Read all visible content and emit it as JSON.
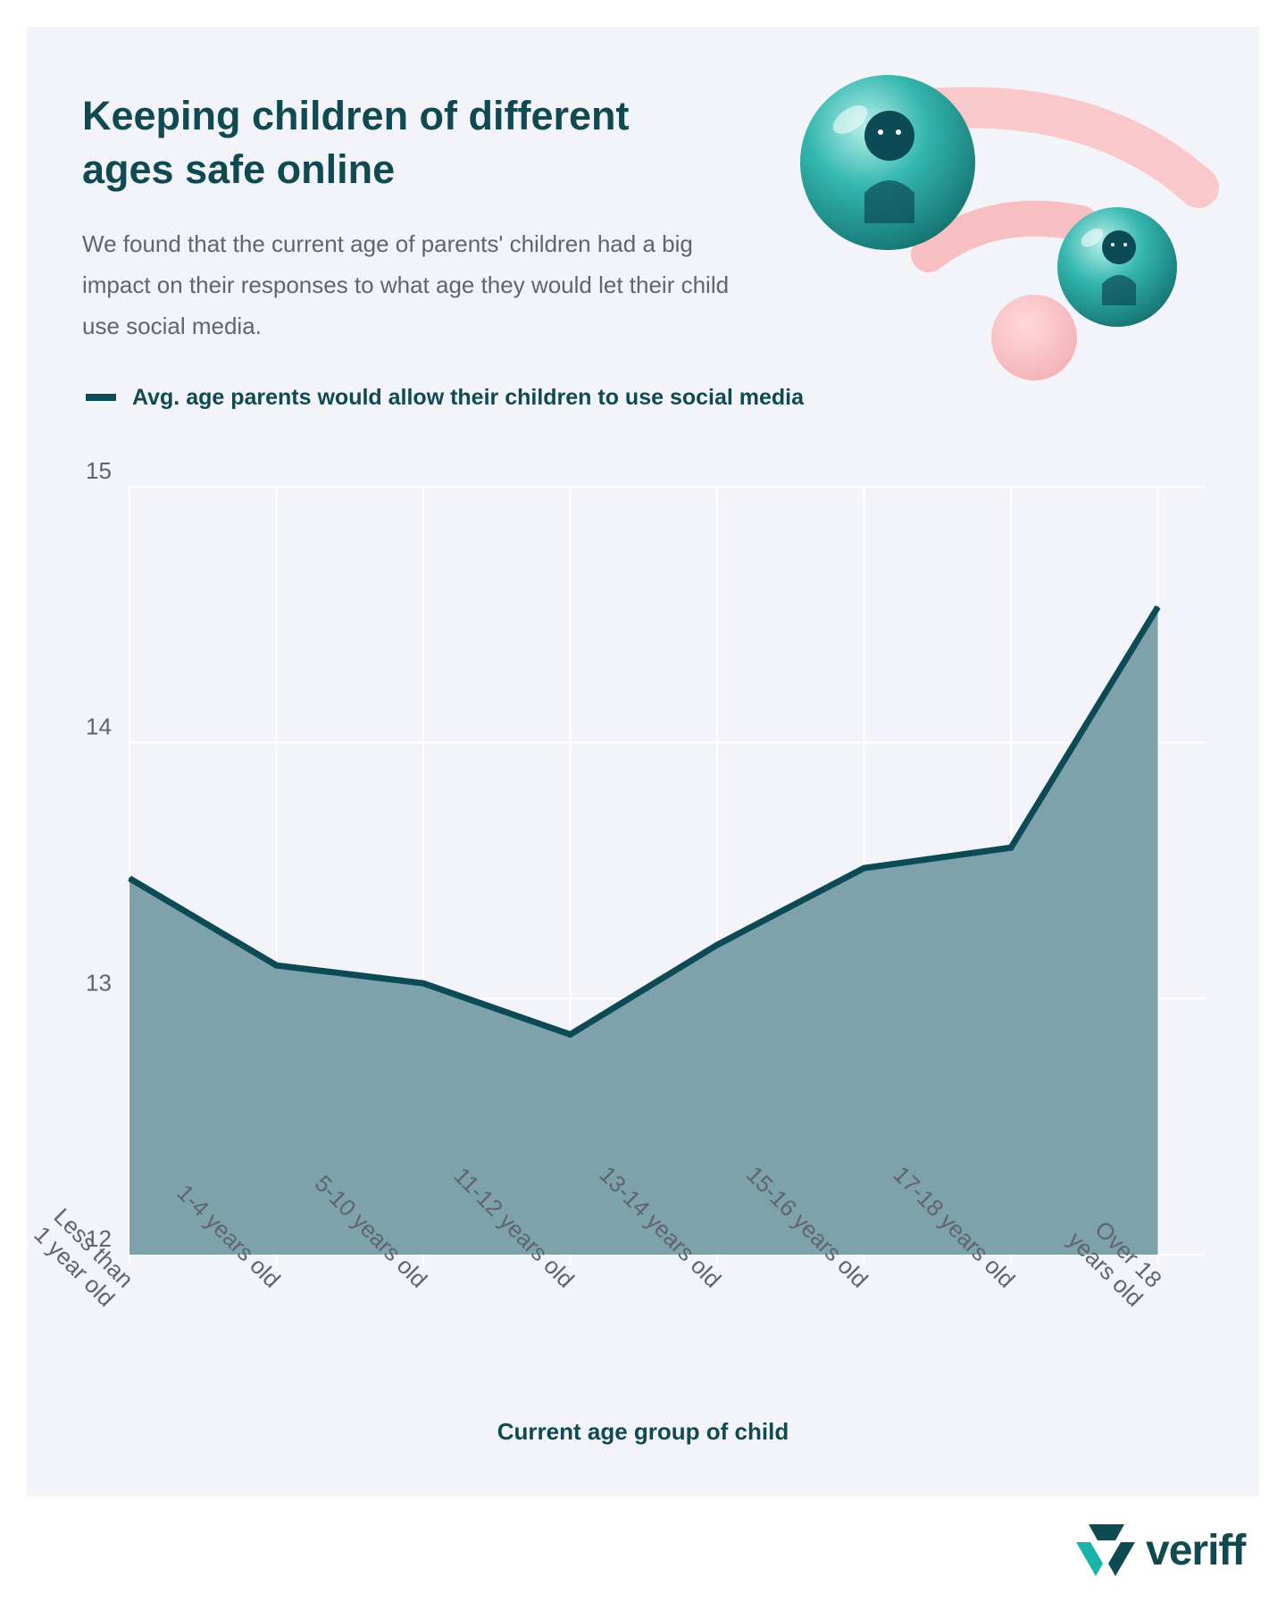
{
  "header": {
    "title": "Keeping children of different ages safe online",
    "intro": "We found that the current age of parents' children had a big impact on their responses to what age they would let their child use social media."
  },
  "legend": {
    "label": "Avg. age parents would allow their children to use social media",
    "color": "#0c4a56"
  },
  "brand": {
    "name": "veriff"
  },
  "icons": {
    "hero": "wifi-people-illustration",
    "logo": "veriff-logo-icon"
  },
  "colors": {
    "line": "#0c4a56",
    "fill": "#7ea2ab",
    "text_dark": "#0f4a52",
    "text_muted": "#5f6470",
    "background": "#f3f4f9"
  },
  "chart_data": {
    "type": "area",
    "title": "",
    "xlabel": "Current age group of child",
    "ylabel": "",
    "ylim": [
      12,
      15
    ],
    "yticks": [
      12,
      13,
      14,
      15
    ],
    "grid": true,
    "legend_position": "top-left",
    "categories": [
      [
        "Less than",
        "1 year old"
      ],
      [
        "1-4 years old"
      ],
      [
        "5-10 years old"
      ],
      [
        "11-12 years old"
      ],
      [
        "13-14 years old"
      ],
      [
        "15-16 years old"
      ],
      [
        "17-18 years old"
      ],
      [
        "Over 18",
        "years old"
      ]
    ],
    "series": [
      {
        "name": "Avg. age parents would allow their children to use social media",
        "values": [
          13.47,
          13.13,
          13.06,
          12.86,
          13.21,
          13.51,
          13.59,
          14.53
        ]
      }
    ]
  }
}
